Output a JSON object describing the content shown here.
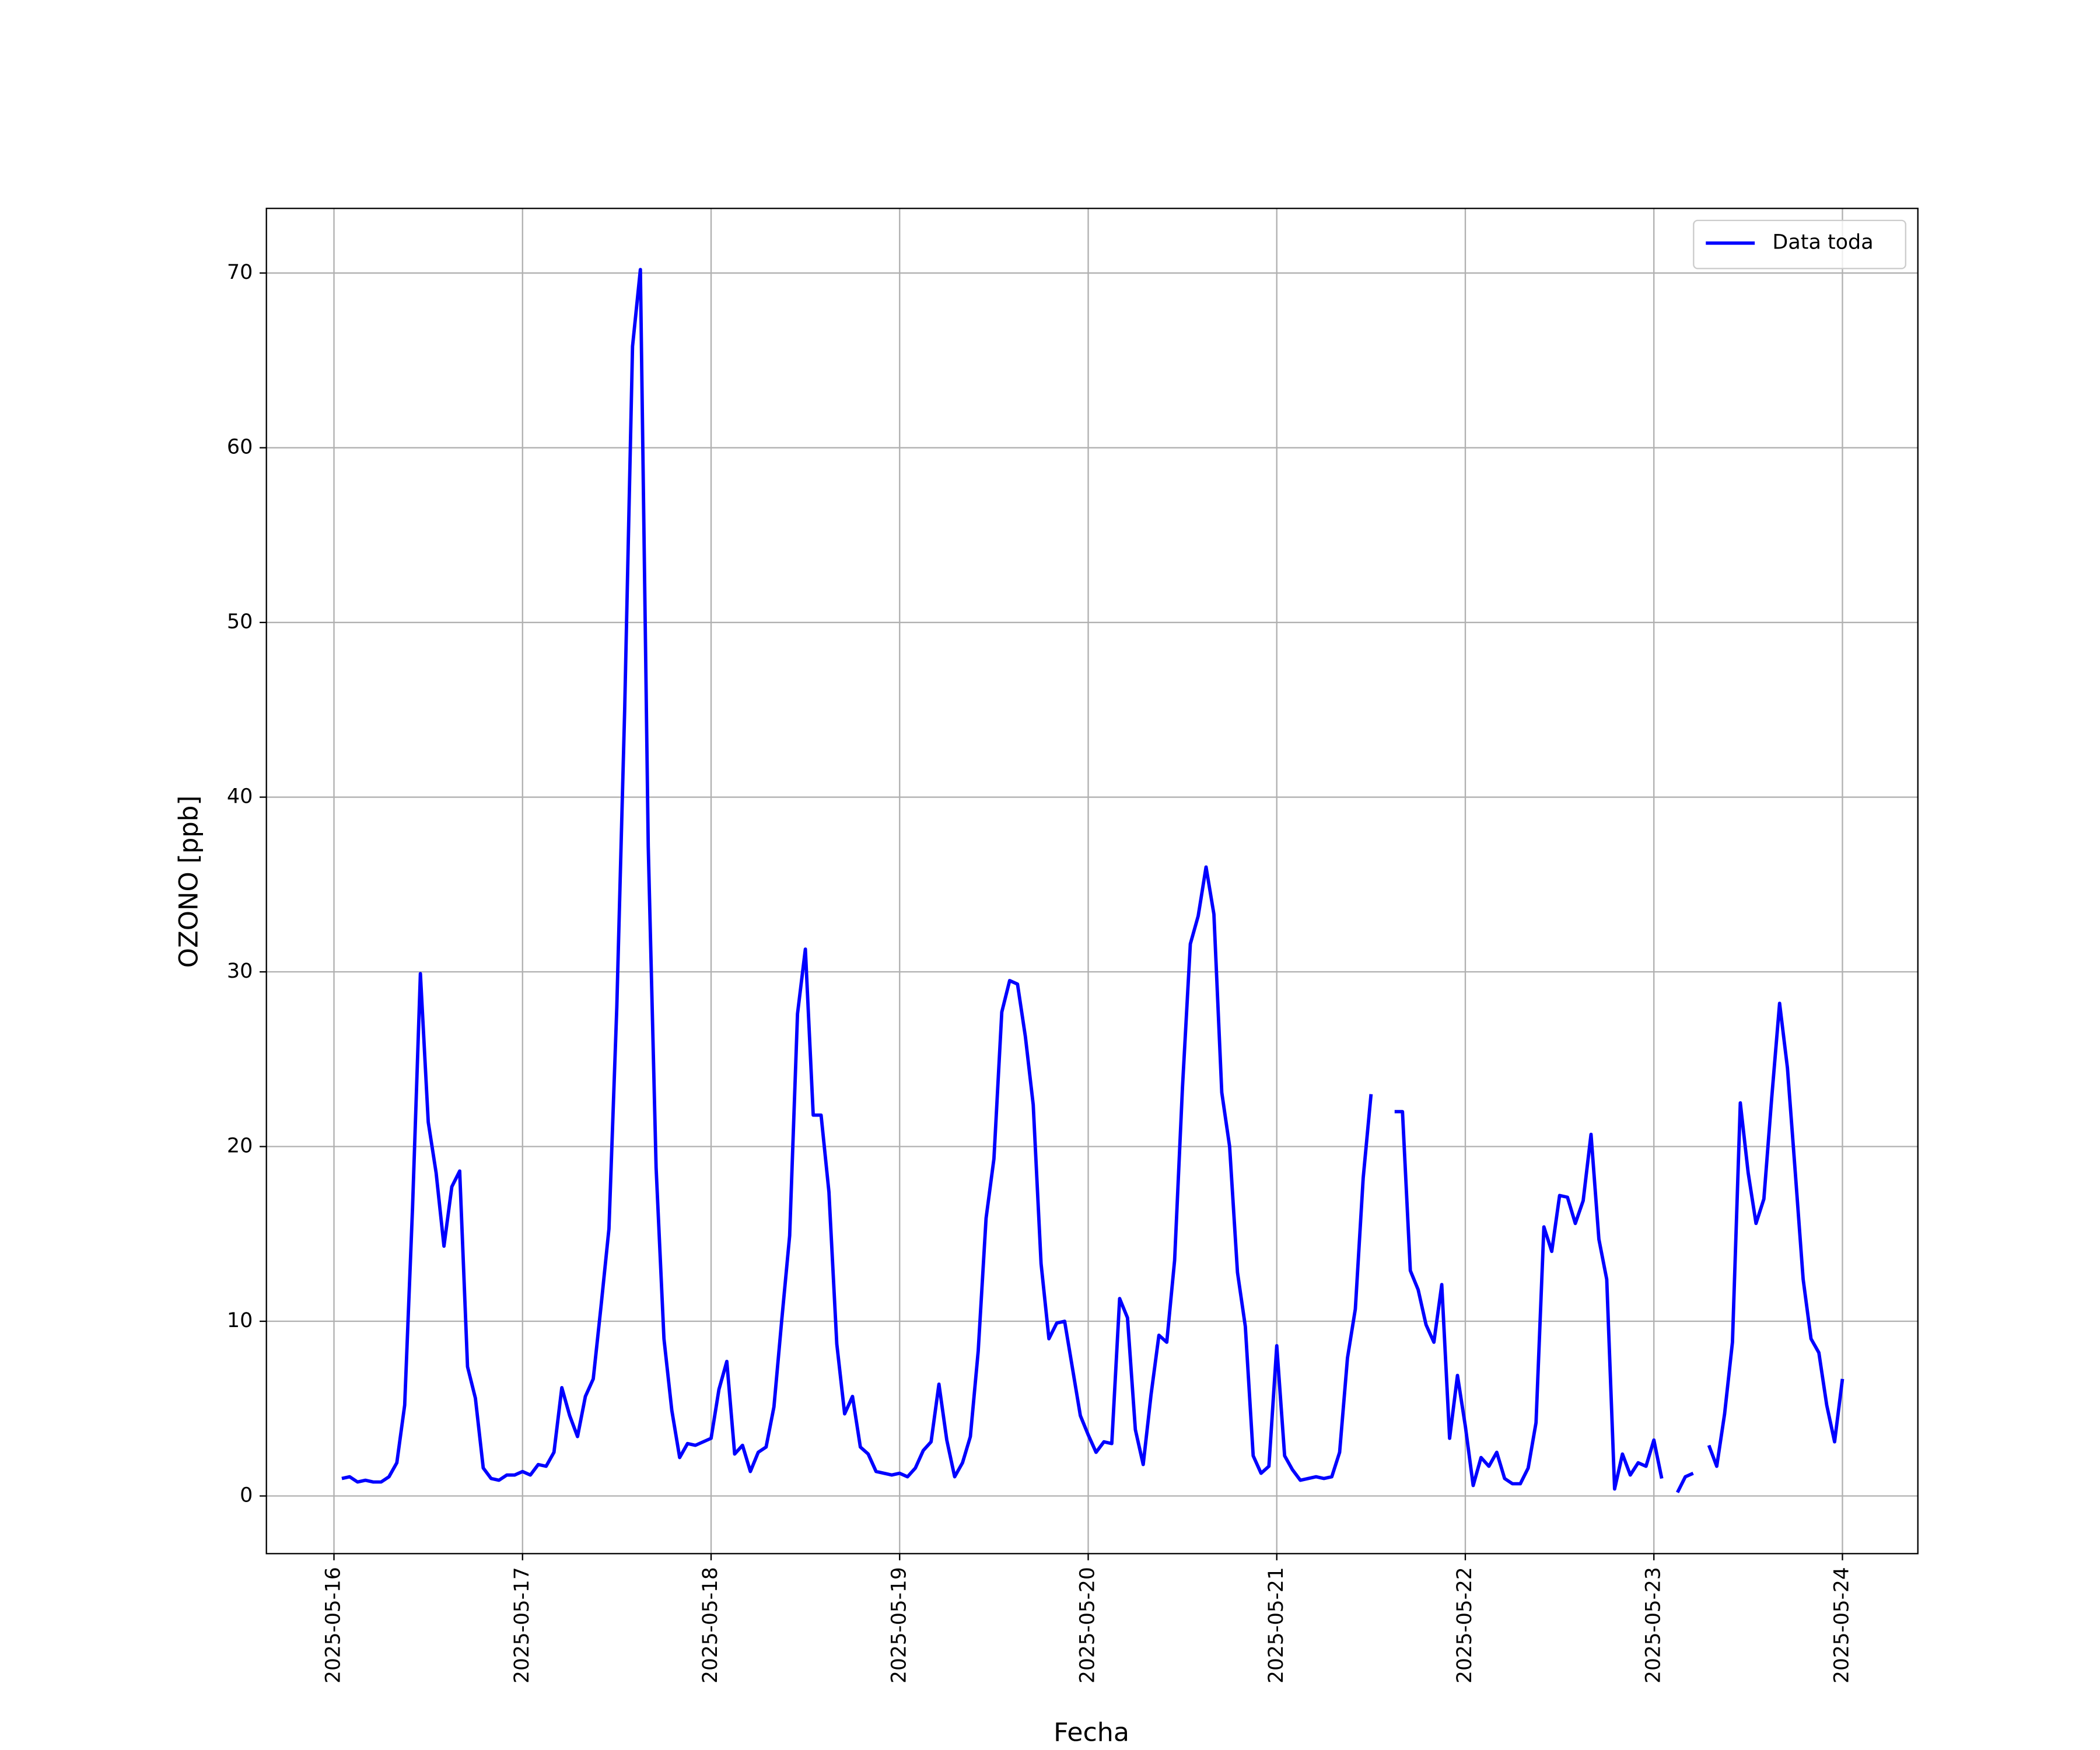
{
  "chart_data": {
    "type": "line",
    "xlabel": "Fecha",
    "ylabel": "OZONO [ppb]",
    "x": [
      "2025-05-16T01:00",
      "2025-05-16T02:00",
      "2025-05-16T03:00",
      "2025-05-16T04:00",
      "2025-05-16T05:00",
      "2025-05-16T06:00",
      "2025-05-16T07:00",
      "2025-05-16T08:00",
      "2025-05-16T09:00",
      "2025-05-16T10:00",
      "2025-05-16T11:00",
      "2025-05-16T12:00",
      "2025-05-16T13:00",
      "2025-05-16T14:00",
      "2025-05-16T15:00",
      "2025-05-16T16:00",
      "2025-05-16T17:00",
      "2025-05-16T18:00",
      "2025-05-16T19:00",
      "2025-05-16T20:00",
      "2025-05-16T21:00",
      "2025-05-16T22:00",
      "2025-05-16T23:00",
      "2025-05-17T00:00",
      "2025-05-17T01:00",
      "2025-05-17T02:00",
      "2025-05-17T03:00",
      "2025-05-17T04:00",
      "2025-05-17T05:00",
      "2025-05-17T06:00",
      "2025-05-17T07:00",
      "2025-05-17T08:00",
      "2025-05-17T09:00",
      "2025-05-17T10:00",
      "2025-05-17T11:00",
      "2025-05-17T12:00",
      "2025-05-17T13:00",
      "2025-05-17T14:00",
      "2025-05-17T15:00",
      "2025-05-17T16:00",
      "2025-05-17T17:00",
      "2025-05-17T18:00",
      "2025-05-17T19:00",
      "2025-05-17T20:00",
      "2025-05-17T21:00",
      "2025-05-17T22:00",
      "2025-05-17T23:00",
      "2025-05-18T00:00",
      "2025-05-18T01:00",
      "2025-05-18T02:00",
      "2025-05-18T03:00",
      "2025-05-18T04:00",
      "2025-05-18T05:00",
      "2025-05-18T06:00",
      "2025-05-18T07:00",
      "2025-05-18T08:00",
      "2025-05-18T09:00",
      "2025-05-18T10:00",
      "2025-05-18T11:00",
      "2025-05-18T12:00",
      "2025-05-18T13:00",
      "2025-05-18T14:00",
      "2025-05-18T15:00",
      "2025-05-18T16:00",
      "2025-05-18T17:00",
      "2025-05-18T18:00",
      "2025-05-18T19:00",
      "2025-05-18T20:00",
      "2025-05-18T21:00",
      "2025-05-18T22:00",
      "2025-05-18T23:00",
      "2025-05-19T00:00",
      "2025-05-19T01:00",
      "2025-05-19T02:00",
      "2025-05-19T03:00",
      "2025-05-19T04:00",
      "2025-05-19T05:00",
      "2025-05-19T06:00",
      "2025-05-19T07:00",
      "2025-05-19T08:00",
      "2025-05-19T09:00",
      "2025-05-19T10:00",
      "2025-05-19T11:00",
      "2025-05-19T12:00",
      "2025-05-19T13:00",
      "2025-05-19T14:00",
      "2025-05-19T15:00",
      "2025-05-19T16:00",
      "2025-05-19T17:00",
      "2025-05-19T18:00",
      "2025-05-19T19:00",
      "2025-05-19T20:00",
      "2025-05-19T21:00",
      "2025-05-19T22:00",
      "2025-05-19T23:00",
      "2025-05-20T00:00",
      "2025-05-20T01:00",
      "2025-05-20T02:00",
      "2025-05-20T03:00",
      "2025-05-20T04:00",
      "2025-05-20T05:00",
      "2025-05-20T06:00",
      "2025-05-20T07:00",
      "2025-05-20T08:00",
      "2025-05-20T09:00",
      "2025-05-20T10:00",
      "2025-05-20T11:00",
      "2025-05-20T12:00",
      "2025-05-20T13:00",
      "2025-05-20T14:00",
      "2025-05-20T15:00",
      "2025-05-20T16:00",
      "2025-05-20T17:00",
      "2025-05-20T18:00",
      "2025-05-20T19:00",
      "2025-05-20T20:00",
      "2025-05-20T21:00",
      "2025-05-20T22:00",
      "2025-05-20T23:00",
      "2025-05-21T00:00",
      "2025-05-21T01:00",
      "2025-05-21T02:00",
      "2025-05-21T03:00",
      "2025-05-21T04:00",
      "2025-05-21T05:00",
      "2025-05-21T06:00",
      "2025-05-21T07:00",
      "2025-05-21T08:00",
      "2025-05-21T09:00",
      "2025-05-21T10:00",
      "2025-05-21T11:00",
      "2025-05-21T12:00",
      "2025-05-21T13:00",
      "2025-05-21T14:00",
      "2025-05-21T15:00",
      "2025-05-21T16:00",
      "2025-05-21T17:00",
      "2025-05-21T18:00",
      "2025-05-21T19:00",
      "2025-05-21T20:00",
      "2025-05-21T21:00",
      "2025-05-21T22:00",
      "2025-05-21T23:00",
      "2025-05-22T00:00",
      "2025-05-22T01:00",
      "2025-05-22T02:00",
      "2025-05-22T03:00",
      "2025-05-22T04:00",
      "2025-05-22T05:00",
      "2025-05-22T06:00",
      "2025-05-22T07:00",
      "2025-05-22T08:00",
      "2025-05-22T09:00",
      "2025-05-22T10:00",
      "2025-05-22T11:00",
      "2025-05-22T12:00",
      "2025-05-22T13:00",
      "2025-05-22T14:00",
      "2025-05-22T15:00",
      "2025-05-22T16:00",
      "2025-05-22T17:00",
      "2025-05-22T18:00",
      "2025-05-22T19:00",
      "2025-05-22T20:00",
      "2025-05-22T21:00",
      "2025-05-22T22:00",
      "2025-05-22T23:00",
      "2025-05-23T00:00",
      "2025-05-23T01:00",
      "2025-05-23T02:00",
      "2025-05-23T03:00",
      "2025-05-23T04:00",
      "2025-05-23T05:00",
      "2025-05-23T06:00",
      "2025-05-23T07:00",
      "2025-05-23T08:00",
      "2025-05-23T09:00",
      "2025-05-23T10:00",
      "2025-05-23T11:00",
      "2025-05-23T12:00",
      "2025-05-23T13:00",
      "2025-05-23T14:00",
      "2025-05-23T15:00",
      "2025-05-23T16:00",
      "2025-05-23T17:00",
      "2025-05-23T18:00",
      "2025-05-23T19:00",
      "2025-05-23T20:00",
      "2025-05-23T21:00",
      "2025-05-23T22:00",
      "2025-05-23T23:00",
      "2025-05-24T00:00"
    ],
    "series": [
      {
        "name": "Data toda",
        "color": "#0000ff",
        "values": [
          1.0,
          1.1,
          0.8,
          0.9,
          0.8,
          0.8,
          1.1,
          1.9,
          5.2,
          16.5,
          29.9,
          21.4,
          18.5,
          14.3,
          17.7,
          18.6,
          7.4,
          5.6,
          1.6,
          1.0,
          0.9,
          1.2,
          1.2,
          1.4,
          1.2,
          1.8,
          1.7,
          2.5,
          6.2,
          4.6,
          3.4,
          5.7,
          6.7,
          10.9,
          15.3,
          28,
          45,
          65.8,
          70.2,
          37.2,
          18.8,
          9.0,
          4.9,
          2.2,
          3.0,
          2.9,
          3.1,
          3.3,
          6.1,
          7.7,
          2.4,
          2.9,
          1.4,
          2.5,
          2.8,
          5.1,
          10.1,
          14.9,
          27.6,
          31.3,
          21.8,
          21.8,
          17.4,
          8.7,
          4.7,
          5.7,
          2.8,
          2.4,
          1.4,
          1.3,
          1.2,
          1.3,
          1.1,
          1.6,
          2.6,
          3.1,
          6.4,
          3.2,
          1.1,
          1.9,
          3.4,
          8.3,
          15.9,
          19.3,
          27.7,
          29.5,
          29.3,
          26.3,
          22.4,
          13.3,
          9.0,
          9.9,
          10.0,
          7.3,
          4.6,
          3.5,
          2.5,
          3.1,
          3.0,
          11.3,
          10.2,
          3.8,
          1.8,
          5.8,
          9.2,
          8.8,
          13.5,
          23.4,
          31.6,
          33.2,
          36.0,
          33.3,
          23.1,
          20.0,
          12.8,
          9.7,
          2.3,
          1.3,
          1.7,
          8.6,
          2.3,
          1.5,
          0.9,
          1.0,
          1.1,
          1.0,
          1.1,
          2.5,
          7.9,
          10.7,
          18.2,
          23.0,
          null,
          null,
          22.0,
          22.0,
          12.9,
          11.8,
          9.8,
          8.8,
          12.1,
          3.3,
          6.9,
          4.0,
          0.6,
          2.2,
          1.7,
          2.5,
          1.0,
          0.7,
          0.7,
          1.6,
          4.2,
          15.4,
          14.0,
          17.2,
          17.1,
          15.6,
          16.9,
          20.7,
          14.7,
          12.4,
          0.4,
          2.4,
          1.2,
          1.9,
          1.7,
          3.2,
          1.0,
          null,
          0.2,
          1.1,
          1.3,
          null,
          2.9,
          1.7,
          4.7,
          8.8,
          22.5,
          18.5,
          15.6,
          17.0,
          22.8,
          28.2,
          24.5,
          18.5,
          12.4,
          9.0,
          8.2,
          5.2,
          3.1,
          6.7
        ]
      }
    ],
    "xlim": [
      "2025-05-15T15:24",
      "2025-05-24T09:36"
    ],
    "xticks": [
      "2025-05-16",
      "2025-05-17",
      "2025-05-18",
      "2025-05-19",
      "2025-05-20",
      "2025-05-21",
      "2025-05-22",
      "2025-05-23",
      "2025-05-24"
    ],
    "ylim": [
      -3.3,
      73.7
    ],
    "yticks": [
      0,
      10,
      20,
      30,
      40,
      50,
      60,
      70
    ],
    "grid": true,
    "legend": "upper right"
  }
}
